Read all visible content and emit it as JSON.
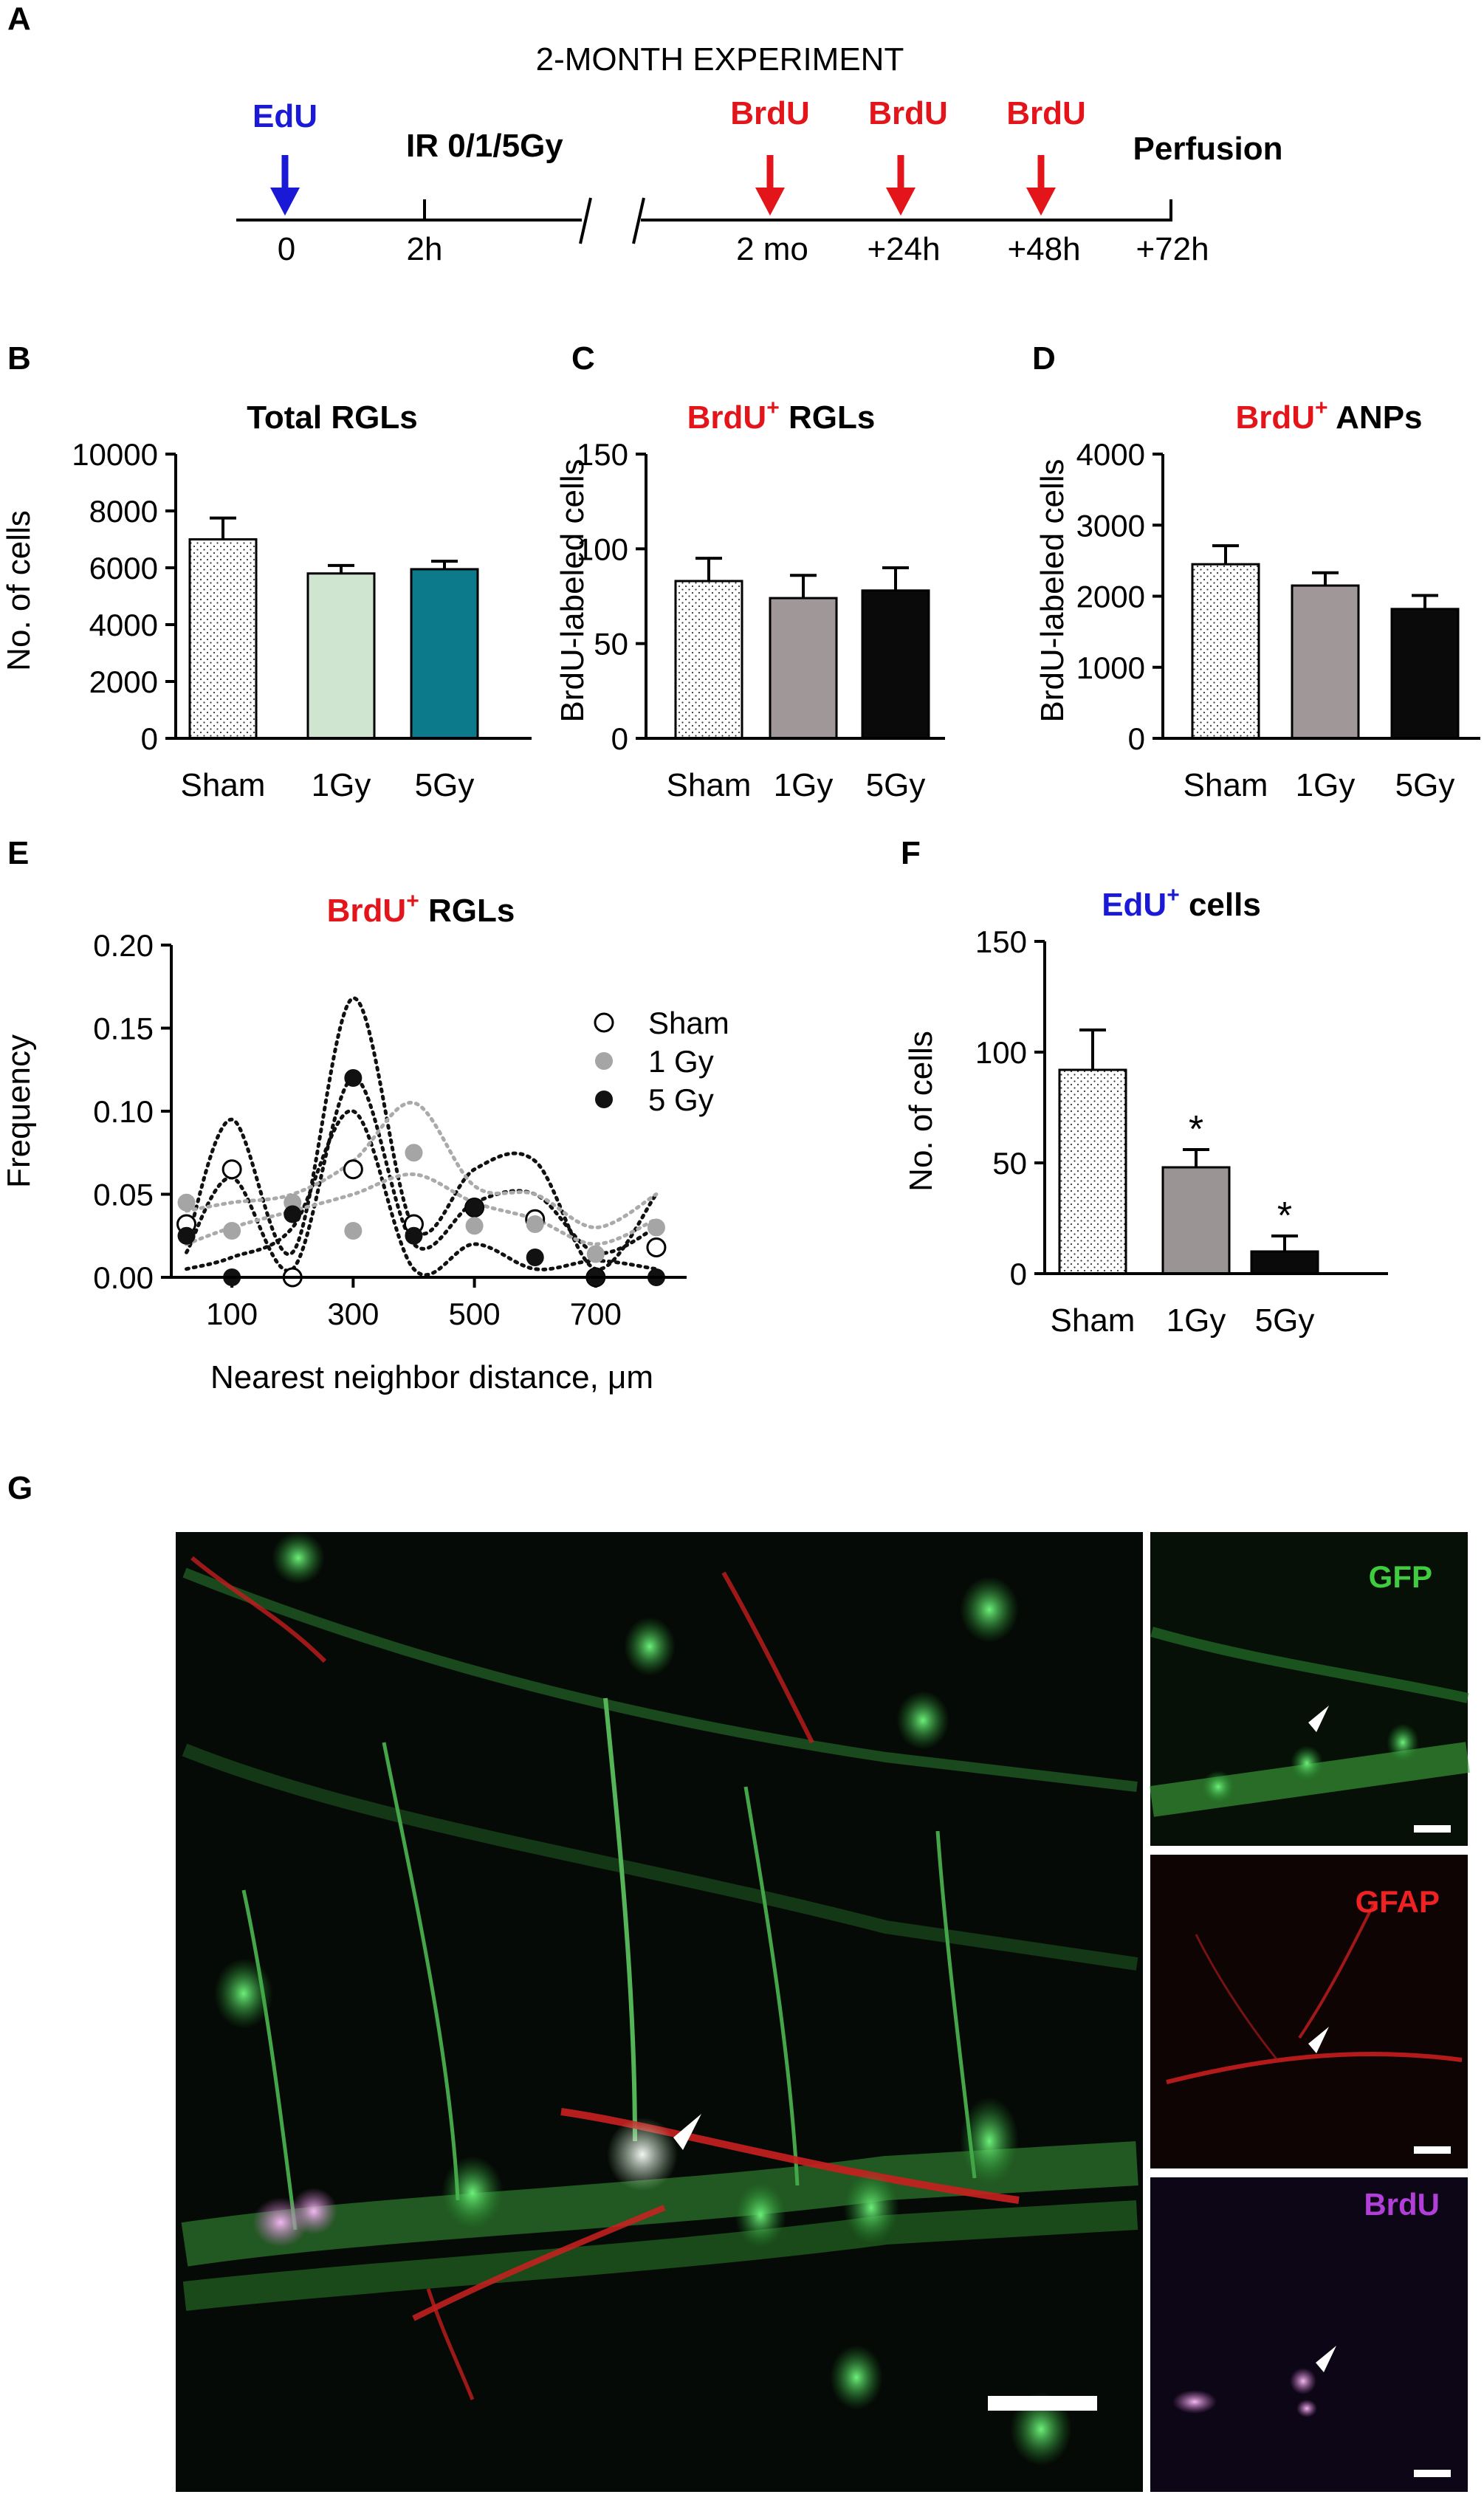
{
  "panels": {
    "a": "A",
    "b": "B",
    "c": "C",
    "d": "D",
    "e": "E",
    "f": "F",
    "g": "G"
  },
  "timeline": {
    "title": "2-MONTH EXPERIMENT",
    "edu_label": "EdU",
    "ir_label": "IR 0/1/5Gy",
    "brdu_label": "BrdU",
    "perfusion_label": "Perfusion",
    "ticks": [
      "0",
      "2h",
      "2 mo",
      "+24h",
      "+48h",
      "+72h"
    ],
    "colors": {
      "edu": "#1a1ad6",
      "brdu": "#e3141a"
    }
  },
  "colors": {
    "sham_fill": "#ffffff",
    "gy1_fill_b": "#cfe5cf",
    "gy5_fill_b": "#0d7a8c",
    "gy1_fill_cd": "#a09898",
    "gy5_fill_cd": "#0a0a0a",
    "gy1_fill_f": "#9a9494",
    "gy5_fill_f": "#0a0a0a"
  },
  "chart_data": [
    {
      "id": "B",
      "type": "bar",
      "title": "Total RGLs",
      "ylabel": "No. of cells",
      "categories": [
        "Sham",
        "1Gy",
        "5Gy"
      ],
      "values": [
        7000,
        5800,
        5950
      ],
      "errors": [
        750,
        280,
        280
      ],
      "ylim": [
        0,
        10000
      ],
      "yticks": [
        "0",
        "2000",
        "4000",
        "6000",
        "8000",
        "10000"
      ]
    },
    {
      "id": "C",
      "type": "bar",
      "title_marker": "BrdU",
      "title_sup": "+",
      "title_rest": " RGLs",
      "ylabel": "BrdU-labeled cells",
      "categories": [
        "Sham",
        "1Gy",
        "5Gy"
      ],
      "values": [
        83,
        74,
        78
      ],
      "errors": [
        12,
        12,
        12
      ],
      "ylim": [
        0,
        150
      ],
      "yticks": [
        "0",
        "50",
        "100",
        "150"
      ]
    },
    {
      "id": "D",
      "type": "bar",
      "title_marker": "BrdU",
      "title_sup": "+",
      "title_rest": " ANPs",
      "ylabel": "BrdU-labeled cells",
      "categories": [
        "Sham",
        "1Gy",
        "5Gy"
      ],
      "values": [
        2450,
        2150,
        1820
      ],
      "errors": [
        260,
        180,
        190
      ],
      "ylim": [
        0,
        4000
      ],
      "yticks": [
        "0",
        "1000",
        "2000",
        "3000",
        "4000"
      ]
    },
    {
      "id": "E",
      "type": "scatter",
      "title_marker": "BrdU",
      "title_sup": "+",
      "title_rest": " RGLs",
      "xlabel": "Nearest neighbor distance, μm",
      "ylabel": "Frequency",
      "xlim": [
        0,
        850
      ],
      "ylim": [
        0,
        0.2
      ],
      "xticks": [
        "100",
        "300",
        "500",
        "700"
      ],
      "yticks": [
        "0.00",
        "0.05",
        "0.10",
        "0.15",
        "0.20"
      ],
      "legend_position": "top-right",
      "x": [
        25,
        100,
        200,
        300,
        400,
        500,
        600,
        700,
        800
      ],
      "series": [
        {
          "name": "Sham",
          "values": [
            0.032,
            0.065,
            0.0,
            0.065,
            0.032,
            0.042,
            0.035,
            0.0,
            0.018
          ]
        },
        {
          "name": "1 Gy",
          "values": [
            0.045,
            0.028,
            0.045,
            0.028,
            0.075,
            0.031,
            0.032,
            0.014,
            0.03
          ]
        },
        {
          "name": "5 Gy",
          "values": [
            0.025,
            0.0,
            0.038,
            0.12,
            0.025,
            0.042,
            0.012,
            0.0,
            0.0
          ]
        }
      ],
      "curves": [
        {
          "color": "#111111",
          "y": [
            0.02,
            0.095,
            0.015,
            0.168,
            0.03,
            0.065,
            0.07,
            0.005,
            0.05
          ]
        },
        {
          "color": "#111111",
          "y": [
            0.015,
            0.06,
            0.005,
            0.12,
            0.02,
            0.045,
            0.05,
            0.015,
            0.03
          ]
        },
        {
          "color": "#111111",
          "y": [
            0.005,
            0.012,
            0.03,
            0.1,
            0.005,
            0.02,
            0.005,
            0.01,
            0.005
          ]
        },
        {
          "color": "#aaaaaa",
          "y": [
            0.04,
            0.045,
            0.05,
            0.07,
            0.105,
            0.055,
            0.05,
            0.03,
            0.05
          ]
        },
        {
          "color": "#aaaaaa",
          "y": [
            0.02,
            0.03,
            0.04,
            0.05,
            0.062,
            0.045,
            0.035,
            0.02,
            0.035
          ]
        }
      ]
    },
    {
      "id": "F",
      "type": "bar",
      "title_marker": "EdU",
      "title_sup": "+",
      "title_rest": " cells",
      "ylabel": "No. of cells",
      "categories": [
        "Sham",
        "1Gy",
        "5Gy"
      ],
      "values": [
        92,
        48,
        10
      ],
      "errors": [
        18,
        8,
        7
      ],
      "significance": [
        "",
        "*",
        "*"
      ],
      "ylim": [
        0,
        150
      ],
      "yticks": [
        "0",
        "50",
        "100",
        "150"
      ]
    }
  ],
  "micrograph": {
    "side_labels": [
      "GFP",
      "GFAP",
      "BrdU"
    ],
    "side_label_colors": [
      "#3fcc3f",
      "#ee2222",
      "#b23fd8"
    ]
  }
}
